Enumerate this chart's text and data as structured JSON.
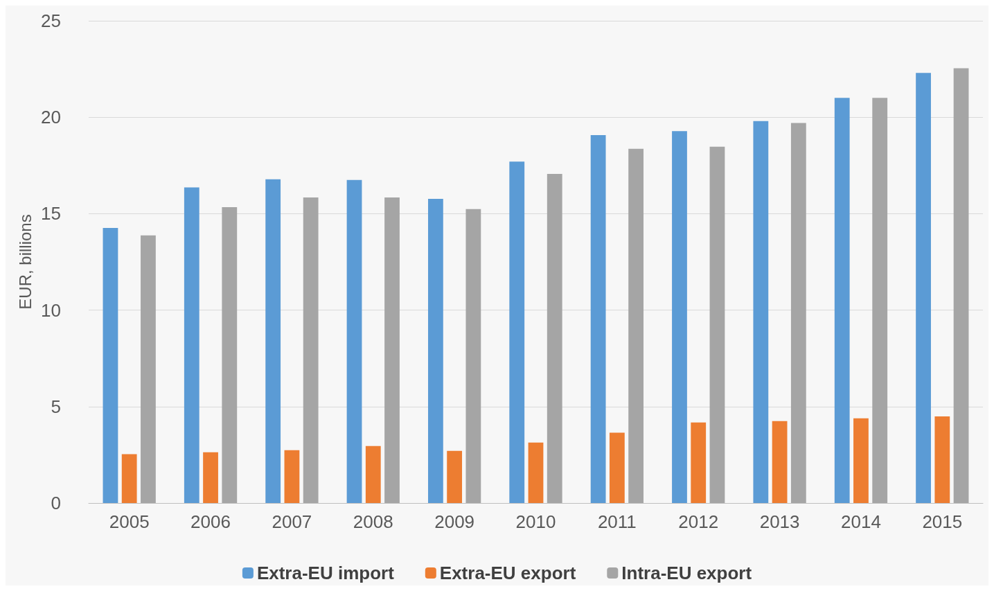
{
  "chart_data": {
    "type": "bar",
    "ylabel": "EUR, billions",
    "categories": [
      "2005",
      "2006",
      "2007",
      "2008",
      "2009",
      "2010",
      "2011",
      "2012",
      "2013",
      "2014",
      "2015"
    ],
    "series": [
      {
        "name": "Extra-EU import",
        "color": "#5b9bd5",
        "values": [
          14.26,
          16.36,
          16.78,
          16.75,
          15.77,
          17.7,
          19.07,
          19.28,
          19.8,
          21.0,
          22.3
        ]
      },
      {
        "name": "Extra-EU export",
        "color": "#ed7d31",
        "values": [
          2.53,
          2.63,
          2.74,
          2.95,
          2.7,
          3.13,
          3.65,
          4.18,
          4.25,
          4.39,
          4.49
        ]
      },
      {
        "name": "Intra-EU export",
        "color": "#a5a5a5",
        "values": [
          13.87,
          15.34,
          15.84,
          15.84,
          15.24,
          17.06,
          18.36,
          18.47,
          19.7,
          21.0,
          22.54
        ]
      }
    ],
    "ylim": [
      0,
      25
    ],
    "yticks": [
      0,
      5,
      10,
      15,
      20,
      25
    ],
    "grid": "y",
    "legend": "bottom"
  }
}
